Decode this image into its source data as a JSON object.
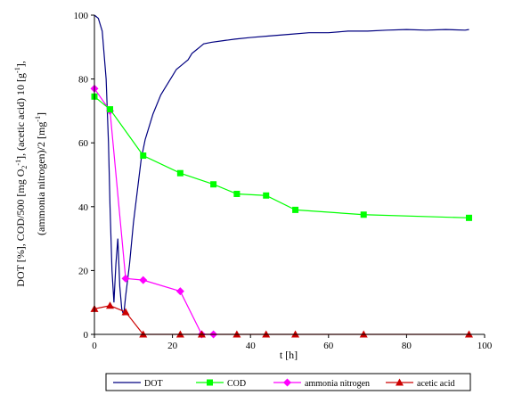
{
  "chart_data": {
    "type": "line",
    "title": "",
    "xlabel": "t [h]",
    "ylabel_lines": [
      "DOT [%], COD/500 [mg O",
      "(ammonia nitrogen)/2 [mg"
    ],
    "xlim": [
      0,
      100
    ],
    "ylim": [
      0,
      100
    ],
    "xticks": [
      0,
      20,
      40,
      60,
      80,
      100
    ],
    "yticks": [
      0,
      20,
      40,
      60,
      80,
      100
    ],
    "grid": false,
    "legend_position": "bottom",
    "series": [
      {
        "name": "DOT",
        "color": "#000080",
        "marker": "none",
        "points": [
          [
            0,
            100
          ],
          [
            1,
            99
          ],
          [
            2,
            95
          ],
          [
            3,
            80
          ],
          [
            3.6,
            60
          ],
          [
            4,
            40
          ],
          [
            4.5,
            20
          ],
          [
            5,
            10
          ],
          [
            5.5,
            22
          ],
          [
            6,
            30
          ],
          [
            6.5,
            15
          ],
          [
            7,
            8
          ],
          [
            7.5,
            6
          ],
          [
            8,
            12
          ],
          [
            9,
            22
          ],
          [
            10,
            35
          ],
          [
            11,
            45
          ],
          [
            12,
            55
          ],
          [
            13,
            61
          ],
          [
            14,
            65
          ],
          [
            15,
            69
          ],
          [
            16,
            72
          ],
          [
            17,
            75
          ],
          [
            18,
            77
          ],
          [
            19,
            79
          ],
          [
            20,
            81
          ],
          [
            21,
            83
          ],
          [
            22,
            84
          ],
          [
            23,
            85
          ],
          [
            24,
            86
          ],
          [
            25,
            88
          ],
          [
            26,
            89
          ],
          [
            27,
            90
          ],
          [
            28,
            91
          ],
          [
            30,
            91.5
          ],
          [
            33,
            92
          ],
          [
            36,
            92.5
          ],
          [
            40,
            93
          ],
          [
            45,
            93.5
          ],
          [
            50,
            94
          ],
          [
            55,
            94.5
          ],
          [
            60,
            94.5
          ],
          [
            65,
            95
          ],
          [
            70,
            95
          ],
          [
            75,
            95.3
          ],
          [
            80,
            95.5
          ],
          [
            85,
            95.3
          ],
          [
            90,
            95.5
          ],
          [
            95,
            95.3
          ],
          [
            96,
            95.5
          ]
        ]
      },
      {
        "name": "COD",
        "color": "#00ff00",
        "marker": "square",
        "points": [
          [
            0,
            74.5
          ],
          [
            4,
            70.5
          ],
          [
            12.5,
            56
          ],
          [
            22,
            50.5
          ],
          [
            30.5,
            47
          ],
          [
            36.5,
            44
          ],
          [
            44,
            43.5
          ],
          [
            51.5,
            39
          ],
          [
            69,
            37.5
          ],
          [
            96,
            36.5
          ]
        ]
      },
      {
        "name": "ammonia nitrogen",
        "color": "#ff00ff",
        "marker": "diamond",
        "points": [
          [
            0,
            77
          ],
          [
            4,
            70
          ],
          [
            8,
            17.5
          ],
          [
            12.5,
            17
          ],
          [
            22,
            13.5
          ],
          [
            27.5,
            0
          ],
          [
            30.5,
            0
          ]
        ]
      },
      {
        "name": "acetic acid",
        "color": "#cc0000",
        "marker": "triangle",
        "points": [
          [
            0,
            8
          ],
          [
            4,
            9
          ],
          [
            8,
            7
          ],
          [
            12.5,
            0
          ],
          [
            22,
            0
          ],
          [
            27.5,
            0
          ],
          [
            36.5,
            0
          ],
          [
            44,
            0
          ],
          [
            51.5,
            0
          ],
          [
            69,
            0
          ],
          [
            96,
            0
          ]
        ]
      }
    ]
  }
}
